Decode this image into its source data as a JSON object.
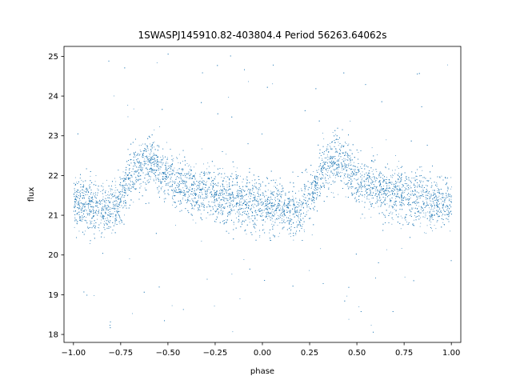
{
  "chart_data": {
    "type": "scatter",
    "title": "1SWASPJ145910.82-403804.4 Period 56263.64062s",
    "xlabel": "phase",
    "ylabel": "flux",
    "xlim": [
      -1.05,
      1.05
    ],
    "ylim": [
      17.8,
      25.25
    ],
    "x_ticks": [
      -1.0,
      -0.75,
      -0.5,
      -0.25,
      0.0,
      0.25,
      0.5,
      0.75,
      1.0
    ],
    "x_tick_labels": [
      "−1.00",
      "−0.75",
      "−0.50",
      "−0.25",
      "0.00",
      "0.25",
      "0.50",
      "0.75",
      "1.00"
    ],
    "y_ticks": [
      18,
      19,
      20,
      21,
      22,
      23,
      24,
      25
    ],
    "y_tick_labels": [
      "18",
      "19",
      "20",
      "21",
      "22",
      "23",
      "24",
      "25"
    ],
    "grid": false,
    "point_color": "#1f77b4",
    "series": [
      {
        "x": [
          -1.0,
          -0.95,
          -0.9,
          -0.85,
          -0.8,
          -0.75,
          -0.7,
          -0.65,
          -0.6,
          -0.55,
          -0.5,
          -0.45,
          -0.4,
          -0.35,
          -0.3,
          -0.25,
          -0.2,
          -0.15,
          -0.1,
          -0.05,
          0.0,
          0.05,
          0.1,
          0.15,
          0.2,
          0.25,
          0.3,
          0.35,
          0.4,
          0.45,
          0.5,
          0.55,
          0.6,
          0.65,
          0.7,
          0.75,
          0.8,
          0.85,
          0.9,
          0.95,
          1.0
        ],
        "y": [
          21.3,
          21.3,
          21.2,
          21.15,
          21.1,
          21.5,
          22.0,
          22.3,
          22.4,
          22.2,
          21.9,
          21.8,
          21.7,
          21.6,
          21.6,
          21.5,
          21.45,
          21.4,
          21.35,
          21.3,
          21.3,
          21.2,
          21.15,
          21.1,
          21.1,
          21.5,
          22.0,
          22.3,
          22.4,
          22.2,
          21.9,
          21.8,
          21.7,
          21.6,
          21.6,
          21.5,
          21.45,
          21.4,
          21.35,
          21.3,
          21.3
        ]
      }
    ]
  }
}
